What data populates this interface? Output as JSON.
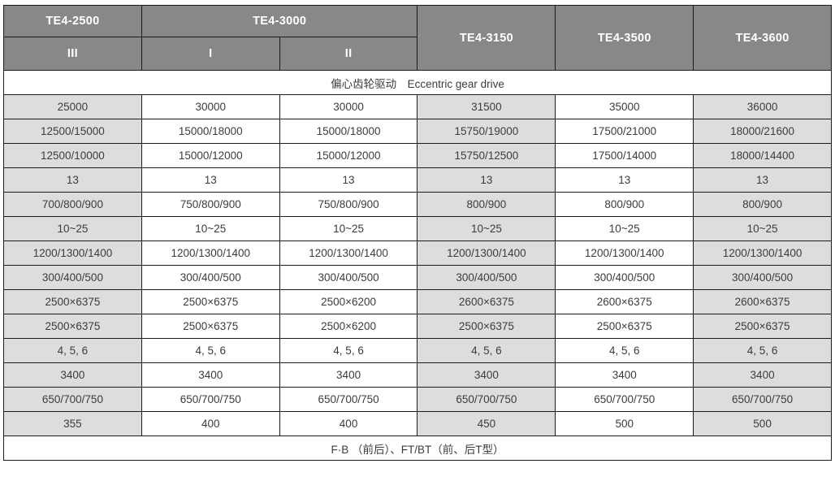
{
  "header": {
    "models": [
      "TE4-2500",
      "TE4-3000",
      "TE4-3150",
      "TE4-3500",
      "TE4-3600"
    ],
    "variants": [
      "III",
      "I",
      "II"
    ]
  },
  "drive_row": "偏心齿轮驱动　Eccentric gear drive",
  "rows": [
    [
      "25000",
      "30000",
      "30000",
      "31500",
      "35000",
      "36000"
    ],
    [
      "12500/15000",
      "15000/18000",
      "15000/18000",
      "15750/19000",
      "17500/21000",
      "18000/21600"
    ],
    [
      "12500/10000",
      "15000/12000",
      "15000/12000",
      "15750/12500",
      "17500/14000",
      "18000/14400"
    ],
    [
      "13",
      "13",
      "13",
      "13",
      "13",
      "13"
    ],
    [
      "700/800/900",
      "750/800/900",
      "750/800/900",
      "800/900",
      "800/900",
      "800/900"
    ],
    [
      "10~25",
      "10~25",
      "10~25",
      "10~25",
      "10~25",
      "10~25"
    ],
    [
      "1200/1300/1400",
      "1200/1300/1400",
      "1200/1300/1400",
      "1200/1300/1400",
      "1200/1300/1400",
      "1200/1300/1400"
    ],
    [
      "300/400/500",
      "300/400/500",
      "300/400/500",
      "300/400/500",
      "300/400/500",
      "300/400/500"
    ],
    [
      "2500×6375",
      "2500×6375",
      "2500×6200",
      "2600×6375",
      "2600×6375",
      "2600×6375"
    ],
    [
      "2500×6375",
      "2500×6375",
      "2500×6200",
      "2500×6375",
      "2500×6375",
      "2500×6375"
    ],
    [
      "4, 5, 6",
      "4, 5, 6",
      "4, 5, 6",
      "4, 5, 6",
      "4, 5, 6",
      "4, 5, 6"
    ],
    [
      "3400",
      "3400",
      "3400",
      "3400",
      "3400",
      "3400"
    ],
    [
      "650/700/750",
      "650/700/750",
      "650/700/750",
      "650/700/750",
      "650/700/750",
      "650/700/750"
    ],
    [
      "355",
      "400",
      "400",
      "450",
      "500",
      "500"
    ]
  ],
  "footer_row": "F·B （前后）、FT/BT（前、后T型）",
  "shaded_columns": [
    0,
    3,
    5
  ],
  "colors": {
    "header_bg": "#888888",
    "header_text": "#ffffff",
    "shaded_cell_bg": "#dddddd",
    "cell_text": "#3c3c3c",
    "border": "#1c1c1c"
  }
}
